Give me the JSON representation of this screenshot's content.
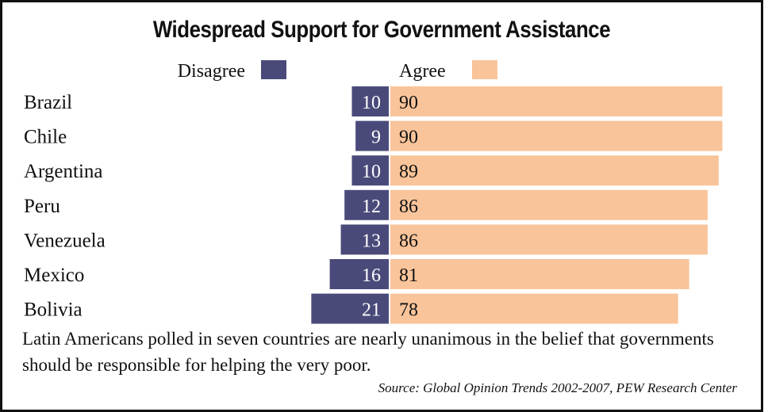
{
  "chart_data": {
    "type": "bar",
    "orientation": "horizontal-diverging",
    "title": "Widespread Support for Government Assistance",
    "categories": [
      "Brazil",
      "Chile",
      "Argentina",
      "Peru",
      "Venezuela",
      "Mexico",
      "Bolivia"
    ],
    "series": [
      {
        "name": "Disagree",
        "color": "#4a4a7a",
        "values": [
          10,
          9,
          10,
          12,
          13,
          16,
          21
        ]
      },
      {
        "name": "Agree",
        "color": "#f9c49a",
        "values": [
          90,
          90,
          89,
          86,
          86,
          81,
          78
        ]
      }
    ],
    "legend_position": "top",
    "grid": false
  },
  "caption": "Latin Americans polled in seven countries are nearly unanimous in the belief that governments should be responsible for helping the very poor.",
  "source": "Source: Global Opinion Trends 2002-2007, PEW Research Center"
}
